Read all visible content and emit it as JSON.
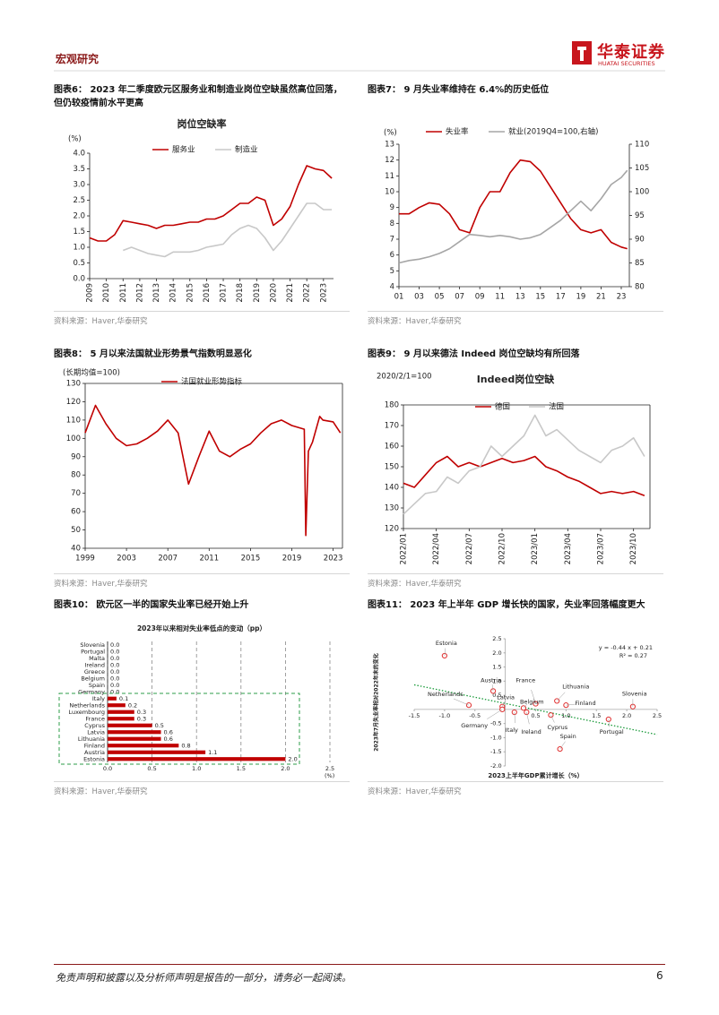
{
  "header": {
    "section": "宏观研究",
    "logo_cn": "华泰证券",
    "logo_en": "HUATAI SECURITIES"
  },
  "footer": {
    "disclaimer": "免责声明和披露以及分析师声明是报告的一部分，请务必一起阅读。",
    "page": 6
  },
  "chart_data": [
    {
      "type": "line",
      "caption": "图表6：  2023 年二季度欧元区服务业和制造业岗位空缺虽然高位回落，但仍较疫情前水平更高",
      "title": "岗位空缺率",
      "y_label": "(%)",
      "x": [
        2009,
        2009.5,
        2010,
        2010.5,
        2011,
        2011.5,
        2012,
        2012.5,
        2013,
        2013.5,
        2014,
        2014.5,
        2015,
        2015.5,
        2016,
        2016.5,
        2017,
        2017.5,
        2018,
        2018.5,
        2019,
        2019.5,
        2020,
        2020.5,
        2021,
        2021.5,
        2022,
        2022.5,
        2023,
        2023.5
      ],
      "series": [
        {
          "name": "服务业",
          "color": "#c00000",
          "values": [
            1.3,
            1.2,
            1.2,
            1.4,
            1.85,
            1.8,
            1.75,
            1.7,
            1.6,
            1.7,
            1.7,
            1.75,
            1.8,
            1.8,
            1.9,
            1.9,
            2.0,
            2.2,
            2.4,
            2.4,
            2.6,
            2.5,
            1.7,
            1.9,
            2.3,
            3.0,
            3.6,
            3.5,
            3.45,
            3.2
          ]
        },
        {
          "name": "制造业",
          "color": "#c8c8c8",
          "values": [
            null,
            null,
            null,
            null,
            0.9,
            1.0,
            0.9,
            0.8,
            0.75,
            0.7,
            0.85,
            0.85,
            0.85,
            0.9,
            1.0,
            1.05,
            1.1,
            1.4,
            1.6,
            1.7,
            1.6,
            1.3,
            0.9,
            1.2,
            1.6,
            2.0,
            2.4,
            2.4,
            2.2,
            2.2
          ]
        }
      ],
      "xlim": [
        2009,
        2023.6
      ],
      "xticks": [
        2009,
        2010,
        2011,
        2012,
        2013,
        2014,
        2015,
        2016,
        2017,
        2018,
        2019,
        2020,
        2021,
        2022,
        2023
      ],
      "ylim": [
        0,
        4
      ],
      "yticks": [
        {
          "value": 0,
          "label": "0.0"
        },
        0.5,
        {
          "value": 1,
          "label": "1.0"
        },
        1.5,
        {
          "value": 2,
          "label": "2.0"
        },
        2.5,
        {
          "value": 3,
          "label": "3.0"
        },
        3.5,
        {
          "value": 4,
          "label": "4.0"
        }
      ],
      "source": "资料来源：Haver,华泰研究"
    },
    {
      "type": "line",
      "caption": "图表7：  9 月失业率维持在 6.4%的历史低位",
      "y_label": "(%)",
      "x": [
        2001,
        2002,
        2003,
        2004,
        2005,
        2006,
        2007,
        2008,
        2009,
        2010,
        2011,
        2012,
        2013,
        2014,
        2015,
        2016,
        2017,
        2018,
        2019,
        2020,
        2021,
        2022,
        2023,
        2023.6
      ],
      "series": [
        {
          "name": "失业率",
          "color": "#c00000",
          "values": [
            8.6,
            8.6,
            9.0,
            9.3,
            9.2,
            8.6,
            7.6,
            7.4,
            9.0,
            10.0,
            10.0,
            11.2,
            12.0,
            11.9,
            11.3,
            10.3,
            9.3,
            8.3,
            7.6,
            7.4,
            7.6,
            6.8,
            6.5,
            6.4
          ]
        },
        {
          "name": "就业(2019Q4=100,右轴)",
          "color": "#a6a6a6",
          "axis": "y2",
          "values": [
            85,
            85.5,
            85.8,
            86.3,
            87,
            88,
            89.5,
            91,
            90.8,
            90.5,
            90.8,
            90.5,
            90,
            90.3,
            91,
            92.5,
            94,
            96,
            98,
            96,
            98.5,
            101.5,
            103,
            104.5
          ]
        }
      ],
      "xlim": [
        2001,
        2023.8
      ],
      "xticks": [
        {
          "value": 2001,
          "label": "01"
        },
        {
          "value": 2003,
          "label": "03"
        },
        {
          "value": 2005,
          "label": "05"
        },
        {
          "value": 2007,
          "label": "07"
        },
        {
          "value": 2009,
          "label": "09"
        },
        {
          "value": 2011,
          "label": "11"
        },
        {
          "value": 2013,
          "label": "13"
        },
        {
          "value": 2015,
          "label": "15"
        },
        {
          "value": 2017,
          "label": "17"
        },
        {
          "value": 2019,
          "label": "19"
        },
        {
          "value": 2021,
          "label": "21"
        },
        {
          "value": 2023,
          "label": "23"
        }
      ],
      "ylim": [
        4,
        13
      ],
      "yticks": [
        4,
        5,
        6,
        7,
        8,
        9,
        10,
        11,
        12,
        13
      ],
      "y2lim": [
        80,
        110
      ],
      "y2ticks": [
        80,
        85,
        90,
        95,
        100,
        105,
        110
      ],
      "source": "资料来源：Haver,华泰研究"
    },
    {
      "type": "line",
      "caption": "图表8：  5 月以来法国就业形势景气指数明显恶化",
      "y_label": "(长期均值=100)",
      "x": [
        1999,
        2000,
        2001,
        2002,
        2003,
        2004,
        2005,
        2006,
        2007,
        2008,
        2009,
        2010,
        2011,
        2012,
        2013,
        2014,
        2015,
        2016,
        2017,
        2018,
        2019,
        2020.2,
        2020.35,
        2020.6,
        2021,
        2021.7,
        2022,
        2023,
        2023.7
      ],
      "series": [
        {
          "name": "法国就业形势指标",
          "color": "#c00000",
          "values": [
            103,
            118,
            108,
            100,
            96,
            97,
            100,
            104,
            110,
            103,
            75,
            90,
            104,
            93,
            90,
            94,
            97,
            103,
            108,
            110,
            107,
            105,
            47,
            93,
            98,
            112,
            110,
            109,
            103
          ]
        }
      ],
      "xlim": [
        1999,
        2023.9
      ],
      "xticks": [
        1999,
        2003,
        2007,
        2011,
        2015,
        2019,
        2023
      ],
      "ylim": [
        40,
        130
      ],
      "yticks": [
        40,
        50,
        60,
        70,
        80,
        90,
        100,
        110,
        120,
        130
      ],
      "source": "资料来源：Haver,华泰研究"
    },
    {
      "type": "line",
      "caption": "图表9：  9 月以来德法 Indeed 岗位空缺均有所回落",
      "title": "Indeed岗位空缺",
      "y_label": "2020/2/1=100",
      "x": [
        0,
        1,
        2,
        3,
        4,
        5,
        6,
        7,
        8,
        9,
        10,
        11,
        12,
        13,
        14,
        15,
        16,
        17,
        18,
        19,
        20,
        21,
        22
      ],
      "series": [
        {
          "name": "德国",
          "color": "#c00000",
          "values": [
            142,
            140,
            146,
            152,
            155,
            150,
            152,
            150,
            152,
            154,
            152,
            153,
            155,
            150,
            148,
            145,
            143,
            140,
            137,
            138,
            137,
            138,
            136
          ]
        },
        {
          "name": "法国",
          "color": "#c8c8c8",
          "values": [
            127,
            132,
            137,
            138,
            145,
            142,
            148,
            150,
            160,
            155,
            160,
            165,
            175,
            165,
            168,
            163,
            158,
            155,
            152,
            158,
            160,
            164,
            155
          ]
        }
      ],
      "xlim": [
        0,
        22.5
      ],
      "xticks": [
        {
          "value": 0,
          "label": "2022/01"
        },
        {
          "value": 3,
          "label": "2022/04"
        },
        {
          "value": 6,
          "label": "2022/07"
        },
        {
          "value": 9,
          "label": "2022/10"
        },
        {
          "value": 12,
          "label": "2023/01"
        },
        {
          "value": 15,
          "label": "2023/04"
        },
        {
          "value": 18,
          "label": "2023/07"
        },
        {
          "value": 21,
          "label": "2023/10"
        }
      ],
      "ylim": [
        120,
        180
      ],
      "yticks": [
        120,
        130,
        140,
        150,
        160,
        170,
        180
      ],
      "source": "资料来源：Haver,华泰研究"
    },
    {
      "type": "bar",
      "orientation": "horizontal",
      "caption": "图表10：  欧元区一半的国家失业率已经开始上升",
      "title": "2023年以来相对失业率低点的变动（pp）",
      "x_label": "(%)",
      "color": "#c00000",
      "categories": [
        "Slovenia",
        "Portugal",
        "Malta",
        "Ireland",
        "Greece",
        "Belgium",
        "Spain",
        "Germany",
        "Italy",
        "Netherlands",
        "Luxembourg",
        "France",
        "Cyprus",
        "Latvia",
        "Lithuania",
        "Finland",
        "Austria",
        "Estonia"
      ],
      "values": [
        0,
        0,
        0,
        0,
        0,
        0,
        0,
        0,
        0.1,
        0.2,
        0.3,
        0.3,
        0.5,
        0.6,
        0.6,
        0.8,
        1.1,
        2.0
      ],
      "value_labels": [
        "0.0",
        "0.0",
        "0.0",
        "0.0",
        "0.0",
        "0.0",
        "0.0",
        "0.0",
        "0.1",
        "0.2",
        "0.3",
        "0.3",
        "0.5",
        "0.6",
        "0.6",
        "0.8",
        "1.1",
        "2.0"
      ],
      "xlim": [
        0,
        2.5
      ],
      "xticks": [
        {
          "value": 0,
          "label": "0.0"
        },
        0.5,
        {
          "value": 1,
          "label": "1.0"
        },
        1.5,
        {
          "value": 2,
          "label": "2.0"
        },
        2.5
      ],
      "source": "资料来源：Haver,华泰研究"
    },
    {
      "type": "scatter",
      "caption": "图表11：  2023 年上半年 GDP 增长快的国家，失业率回落幅度更大",
      "x_label": "2023上半年GDP累计增长（%）",
      "y_label": "2023年7月失业率相对2022年末的变化",
      "color": "#e03030",
      "points": [
        {
          "name": "Estonia",
          "x": -1.0,
          "y": 1.9,
          "label_color": "#555555"
        },
        {
          "name": "Austria",
          "x": -0.2,
          "y": 0.65,
          "label_color": "#555555"
        },
        {
          "name": "France",
          "x": 0.5,
          "y": 0.2,
          "label_color": "#c00000"
        },
        {
          "name": "Lithuania",
          "x": 0.85,
          "y": 0.3,
          "label_color": "#555555"
        },
        {
          "name": "Finland",
          "x": 1.0,
          "y": 0.15,
          "label_color": "#555555"
        },
        {
          "name": "Slovenia",
          "x": 2.1,
          "y": 0.1,
          "label_color": "#555555"
        },
        {
          "name": "Netherlands",
          "x": -0.6,
          "y": 0.15,
          "label_color": "#555555"
        },
        {
          "name": "Latvia",
          "x": -0.05,
          "y": 0.1,
          "label_color": "#555555"
        },
        {
          "name": "Belgium",
          "x": 0.3,
          "y": 0.05,
          "label_color": "#555555"
        },
        {
          "name": "Germany",
          "x": -0.05,
          "y": 0.0,
          "label_color": "#c00000"
        },
        {
          "name": "Italy",
          "x": 0.15,
          "y": -0.1,
          "label_color": "#c00000"
        },
        {
          "name": "Ireland",
          "x": 0.35,
          "y": -0.1,
          "label_color": "#555555"
        },
        {
          "name": "Cyprus",
          "x": 0.75,
          "y": -0.2,
          "label_color": "#555555"
        },
        {
          "name": "Portugal",
          "x": 1.7,
          "y": -0.35,
          "label_color": "#555555"
        },
        {
          "name": "Spain",
          "x": 0.9,
          "y": -1.4,
          "label_color": "#c00000"
        }
      ],
      "trend": {
        "slope": -0.44,
        "intercept": 0.21,
        "label": "y = -0.44 x + 0.21",
        "r2_label": "R² = 0.27",
        "color": "#1a9a3a"
      },
      "xlim": [
        -1.5,
        2.5
      ],
      "xticks": [
        -1.5,
        {
          "value": -1,
          "label": "-1.0"
        },
        -0.5,
        0.5,
        {
          "value": 1,
          "label": "1.0"
        },
        1.5,
        {
          "value": 2,
          "label": "2.0"
        },
        2.5
      ],
      "ylim": [
        -2,
        2.5
      ],
      "yticks": [
        {
          "value": -2,
          "label": "-2.0"
        },
        -1.5,
        {
          "value": -1,
          "label": "-1.0"
        },
        -0.5,
        0.5,
        {
          "value": 1,
          "label": "1.0"
        },
        1.5,
        {
          "value": 2,
          "label": "2.0"
        },
        2.5
      ],
      "source": "资料来源：Haver,华泰研究"
    }
  ]
}
